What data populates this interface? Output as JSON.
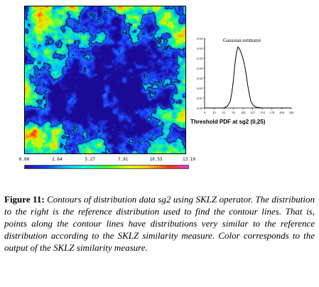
{
  "figure": {
    "heatmap": {
      "description_colors": [
        "#1a0f9e",
        "#1f5cff",
        "#00d5ff",
        "#22ff5a",
        "#e6ff00",
        "#ffb000",
        "#ff2a1e",
        "#ff31c8"
      ],
      "contour_color": "#000000"
    },
    "colorbar": {
      "ticks": [
        "0.00",
        "2.64",
        "5.27",
        "7.91",
        "10.55",
        "13.19"
      ],
      "min": 0.0,
      "max": 13.19
    },
    "pdf_plot": {
      "title": "Threshold PDF at sg2 (0,25)",
      "legend_label": "Gaussian estimator"
    },
    "caption": {
      "label": "Figure 11:",
      "text": "Contours of distribution data sg2 using SKLZ operator. The distribution to the right is the reference distribution used to find the contour lines. That is, points along the contour lines have distributions very similar to the reference distribution according to the SKLZ similarity measure. Color corresponds to the output of the SKLZ similarity measure."
    }
  },
  "chart_data": {
    "type": "line",
    "title": "Threshold PDF at sg2 (0,25)",
    "series": [
      {
        "name": "Gaussian estimator",
        "x": [
          0,
          25,
          51,
          60,
          68,
          72,
          76,
          80,
          84,
          88,
          92,
          96,
          102,
          106,
          110,
          114,
          118,
          122,
          127,
          135,
          153,
          178,
          204,
          229
        ],
        "y": [
          0.0,
          0.0,
          0.0,
          0.001,
          0.004,
          0.009,
          0.016,
          0.025,
          0.032,
          0.035,
          0.034,
          0.032,
          0.028,
          0.024,
          0.019,
          0.013,
          0.008,
          0.004,
          0.002,
          0.0005,
          0.0,
          0.0,
          0.0,
          0.0
        ]
      }
    ],
    "x_ticks": [
      "0",
      "25",
      "51",
      "76",
      "102",
      "127",
      "153",
      "178",
      "204",
      "229"
    ],
    "y_ticks": [
      "0.00",
      "0.01",
      "0.01",
      "0.02",
      "0.02",
      "0.03",
      "0.03",
      "0.04"
    ],
    "xlim": [
      0,
      229
    ],
    "ylim": [
      0,
      0.04
    ],
    "xlabel": "",
    "ylabel": "",
    "grid": false
  }
}
